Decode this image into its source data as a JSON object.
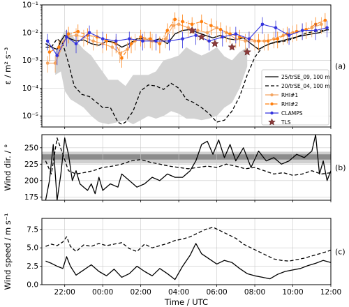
{
  "xaxis": {
    "label": "Time / UTC",
    "ticks": [
      {
        "t": 22,
        "label": "22:00"
      },
      {
        "t": 24,
        "label": "00:00"
      },
      {
        "t": 26,
        "label": "02:00"
      },
      {
        "t": 28,
        "label": "04:00"
      },
      {
        "t": 30,
        "label": "06:00"
      },
      {
        "t": 32,
        "label": "08:00"
      },
      {
        "t": 34,
        "label": "10:00"
      },
      {
        "t": 36,
        "label": "12:00"
      }
    ],
    "range": [
      20.8,
      36
    ]
  },
  "chart_data": [
    {
      "type": "line",
      "panel_label": "(a)",
      "ylabel": "ε / m² s⁻³",
      "yscale": "log",
      "ylim": [
        4e-06,
        0.1
      ],
      "yticks": [
        {
          "v": 1e-05,
          "label": "10⁻⁵"
        },
        {
          "v": 0.0001,
          "label": "10⁻⁴"
        },
        {
          "v": 0.001,
          "label": "10⁻³"
        },
        {
          "v": 0.01,
          "label": "10⁻²"
        },
        {
          "v": 0.1,
          "label": "10⁻¹"
        }
      ],
      "legend_position": "lower-right",
      "band": {
        "color": "#d3d3d3",
        "x": [
          21.5,
          21.8,
          22.0,
          22.3,
          22.6,
          23.0,
          23.4,
          23.8,
          24.3,
          24.8,
          25.2,
          25.6,
          26.0,
          26.4,
          26.8,
          27.2,
          27.6,
          28.0,
          28.4,
          28.8,
          29.2,
          29.6,
          30.0,
          30.4,
          30.8,
          31.2,
          31.6
        ],
        "upper": [
          0.002,
          0.006,
          0.012,
          0.01,
          0.005,
          0.0025,
          0.0015,
          0.0006,
          0.0002,
          0.0002,
          0.00012,
          0.0003,
          0.0003,
          0.0003,
          0.0004,
          0.001,
          0.0012,
          0.0015,
          0.003,
          0.002,
          0.0015,
          0.002,
          0.003,
          0.0014,
          0.001,
          0.002,
          0.003
        ],
        "lower": [
          0.0003,
          0.0004,
          8e-05,
          4e-05,
          3e-05,
          2e-05,
          1e-05,
          6e-06,
          5e-06,
          6e-06,
          7e-06,
          5e-06,
          7e-06,
          1e-05,
          8e-06,
          1e-05,
          1.5e-05,
          1.2e-05,
          8e-06,
          8e-06,
          7e-06,
          8e-06,
          1e-05,
          2e-05,
          3e-05,
          0.0001,
          0.0006
        ]
      },
      "series": [
        {
          "name": "25/trSE_09, 100 m",
          "color": "#000000",
          "style": "solid",
          "marker": "none",
          "x": [
            21.0,
            21.3,
            21.6,
            21.8,
            22.0,
            22.3,
            22.6,
            23.0,
            23.4,
            23.8,
            24.2,
            24.6,
            25.0,
            25.4,
            25.8,
            26.2,
            26.6,
            27.0,
            27.4,
            27.8,
            28.2,
            28.6,
            29.0,
            29.4,
            29.8,
            30.2,
            30.6,
            31.0,
            31.4,
            31.8,
            32.2,
            32.6,
            33.0,
            33.4,
            33.8,
            34.2,
            34.6,
            35.0,
            35.4,
            35.8
          ],
          "y": [
            0.004,
            0.003,
            0.0025,
            0.005,
            0.008,
            0.006,
            0.005,
            0.0055,
            0.004,
            0.0035,
            0.005,
            0.0045,
            0.003,
            0.004,
            0.006,
            0.006,
            0.005,
            0.006,
            0.004,
            0.009,
            0.012,
            0.013,
            0.01,
            0.008,
            0.0065,
            0.008,
            0.006,
            0.0055,
            0.0065,
            0.004,
            0.0025,
            0.0035,
            0.0045,
            0.005,
            0.006,
            0.007,
            0.008,
            0.009,
            0.01,
            0.013
          ]
        },
        {
          "name": "20/trSE_04, 100 m",
          "color": "#000000",
          "style": "dashed",
          "marker": "none",
          "x": [
            21.0,
            21.3,
            21.6,
            21.9,
            22.2,
            22.5,
            22.9,
            23.3,
            23.7,
            24.0,
            24.4,
            24.8,
            25.0,
            25.2,
            25.6,
            26.0,
            26.4,
            26.8,
            27.2,
            27.6,
            28.0,
            28.4,
            28.8,
            29.2,
            29.6,
            30.0,
            30.4,
            30.8,
            31.2,
            31.6,
            32.0,
            32.4,
            32.8,
            33.2,
            33.6,
            34.0,
            34.4,
            34.8,
            35.2,
            35.6,
            36.0
          ],
          "y": [
            0.003,
            0.003,
            0.006,
            0.004,
            0.0008,
            0.00012,
            6e-05,
            5e-05,
            3e-05,
            2e-05,
            2e-05,
            6e-06,
            5e-06,
            6e-06,
            1.5e-05,
            8e-05,
            0.00013,
            0.00012,
            9e-05,
            0.00015,
            0.0001,
            4e-05,
            3e-05,
            2e-05,
            1.2e-05,
            6e-06,
            7e-06,
            1.5e-05,
            5e-05,
            0.0003,
            0.0013,
            0.003,
            0.004,
            0.0045,
            0.005,
            0.006,
            0.008,
            0.01,
            0.011,
            0.012,
            0.013
          ]
        },
        {
          "name": "RHI#1",
          "color": "#f4a460",
          "style": "solid",
          "marker": "dot",
          "x": [
            21.1,
            21.5,
            22.1,
            22.6,
            23.0,
            23.5,
            24.0,
            24.5,
            24.9,
            25.3,
            25.7,
            26.2,
            26.6,
            27.0,
            27.3,
            27.7,
            28.0,
            28.5,
            29.0,
            29.5,
            30.0,
            30.5,
            31.0,
            31.5,
            32.0,
            32.5,
            33.0,
            33.5,
            34.0,
            34.5,
            35.0,
            35.5
          ],
          "y": [
            0.0008,
            0.0008,
            0.007,
            0.008,
            0.007,
            0.005,
            0.004,
            0.003,
            0.0018,
            0.0025,
            0.005,
            0.006,
            0.005,
            0.004,
            0.006,
            0.018,
            0.02,
            0.015,
            0.012,
            0.01,
            0.015,
            0.01,
            0.006,
            0.005,
            0.005,
            0.005,
            0.006,
            0.008,
            0.01,
            0.012,
            0.015,
            0.02
          ]
        },
        {
          "name": "RHI#2",
          "color": "#ff7f0e",
          "style": "dashdot",
          "marker": "dot",
          "x": [
            21.2,
            21.7,
            22.2,
            22.7,
            23.2,
            23.7,
            24.2,
            24.7,
            25.0,
            25.5,
            26.0,
            26.5,
            27.0,
            27.4,
            27.8,
            28.2,
            28.7,
            29.2,
            29.7,
            30.2,
            30.7,
            31.2,
            31.7,
            32.2,
            32.7,
            33.2,
            33.7,
            34.2,
            34.7,
            35.2,
            35.7
          ],
          "y": [
            0.002,
            0.003,
            0.009,
            0.011,
            0.008,
            0.007,
            0.005,
            0.004,
            0.0012,
            0.004,
            0.007,
            0.006,
            0.004,
            0.012,
            0.03,
            0.025,
            0.02,
            0.025,
            0.018,
            0.013,
            0.009,
            0.007,
            0.006,
            0.005,
            0.005,
            0.006,
            0.009,
            0.011,
            0.013,
            0.02,
            0.028
          ]
        },
        {
          "name": "CLAMPS",
          "color": "#3333dd",
          "style": "solid",
          "marker": "dot",
          "x": [
            21.1,
            21.6,
            22.1,
            22.6,
            23.3,
            24.0,
            24.7,
            25.4,
            26.1,
            26.8,
            27.5,
            28.2,
            28.9,
            29.6,
            30.3,
            31.0,
            31.7,
            32.4,
            33.1,
            33.8,
            34.5,
            35.2,
            35.8
          ],
          "y": [
            0.005,
            0.0015,
            0.007,
            0.004,
            0.01,
            0.006,
            0.005,
            0.006,
            0.005,
            0.005,
            0.005,
            0.006,
            0.008,
            0.005,
            0.007,
            0.009,
            0.006,
            0.02,
            0.015,
            0.008,
            0.012,
            0.012,
            0.015
          ]
        },
        {
          "name": "TLS",
          "color": "#8b3a3a",
          "style": "none",
          "marker": "star",
          "x": [
            28.7,
            29.2,
            29.9,
            30.8,
            31.6
          ],
          "y": [
            0.012,
            0.007,
            0.004,
            0.003,
            0.002
          ]
        }
      ]
    },
    {
      "type": "line",
      "panel_label": "(b)",
      "ylabel": "Wind dir. / °",
      "yscale": "linear",
      "ylim": [
        170,
        270
      ],
      "yticks": [
        {
          "v": 175,
          "label": "175"
        },
        {
          "v": 200,
          "label": "200"
        },
        {
          "v": 225,
          "label": "225"
        },
        {
          "v": 250,
          "label": "250"
        }
      ],
      "bands": [
        {
          "from": 226,
          "to": 244,
          "color": "#cfcfcf"
        },
        {
          "from": 232,
          "to": 240,
          "color": "#8c8c8c"
        }
      ],
      "series": [
        {
          "color": "#000000",
          "style": "solid",
          "x": [
            21.0,
            21.2,
            21.4,
            21.6,
            21.8,
            22.0,
            22.2,
            22.4,
            22.6,
            22.8,
            23.0,
            23.2,
            23.4,
            23.6,
            23.8,
            24.0,
            24.4,
            24.8,
            25.0,
            25.4,
            25.8,
            26.2,
            26.6,
            27.0,
            27.4,
            27.8,
            28.2,
            28.6,
            28.9,
            29.2,
            29.5,
            29.8,
            30.1,
            30.4,
            30.7,
            31.0,
            31.4,
            31.8,
            32.2,
            32.6,
            33.0,
            33.4,
            33.8,
            34.2,
            34.6,
            35.0,
            35.2,
            35.4,
            35.6,
            35.8,
            36.0
          ],
          "y": [
            170,
            200,
            255,
            170,
            210,
            265,
            240,
            200,
            215,
            195,
            190,
            185,
            195,
            180,
            205,
            185,
            195,
            190,
            210,
            200,
            190,
            195,
            205,
            200,
            210,
            205,
            205,
            215,
            230,
            255,
            260,
            240,
            262,
            235,
            255,
            230,
            250,
            220,
            245,
            230,
            235,
            225,
            230,
            240,
            235,
            245,
            270,
            210,
            230,
            200,
            215
          ]
        },
        {
          "color": "#000000",
          "style": "dashed",
          "x": [
            21.0,
            21.3,
            21.6,
            21.9,
            22.2,
            22.6,
            23.0,
            23.5,
            24.0,
            24.5,
            25.0,
            25.5,
            26.0,
            26.5,
            27.0,
            27.5,
            28.0,
            28.5,
            29.0,
            29.5,
            30.0,
            30.5,
            31.0,
            31.5,
            32.0,
            32.5,
            33.0,
            33.5,
            34.0,
            34.5,
            35.0,
            35.5,
            36.0
          ],
          "y": [
            230,
            210,
            265,
            240,
            215,
            210,
            212,
            215,
            220,
            222,
            225,
            230,
            232,
            228,
            225,
            222,
            220,
            218,
            220,
            222,
            220,
            225,
            222,
            218,
            220,
            215,
            210,
            212,
            208,
            210,
            215,
            210,
            212
          ]
        }
      ]
    },
    {
      "type": "line",
      "panel_label": "(c)",
      "ylabel": "Wind speed / m s⁻¹",
      "yscale": "linear",
      "ylim": [
        0,
        9
      ],
      "yticks": [
        {
          "v": 0,
          "label": "0.0"
        },
        {
          "v": 2.5,
          "label": "2.5"
        },
        {
          "v": 5.0,
          "label": "5.0"
        },
        {
          "v": 7.5,
          "label": "7.5"
        }
      ],
      "series": [
        {
          "color": "#000000",
          "style": "solid",
          "x": [
            21.0,
            21.3,
            21.6,
            21.9,
            22.1,
            22.3,
            22.6,
            23.0,
            23.4,
            23.8,
            24.2,
            24.6,
            25.0,
            25.4,
            25.8,
            26.2,
            26.6,
            27.0,
            27.4,
            27.8,
            28.2,
            28.6,
            28.9,
            29.2,
            29.6,
            30.0,
            30.4,
            30.8,
            31.2,
            31.6,
            32.0,
            32.4,
            32.8,
            33.2,
            33.6,
            34.0,
            34.4,
            34.8,
            35.2,
            35.6,
            36.0
          ],
          "y": [
            3.2,
            2.9,
            2.5,
            2.2,
            3.8,
            2.5,
            1.3,
            2.0,
            2.7,
            1.8,
            1.2,
            2.1,
            1.0,
            1.5,
            2.5,
            1.8,
            1.2,
            2.2,
            1.5,
            0.7,
            2.5,
            4.0,
            5.6,
            4.2,
            3.5,
            2.8,
            3.3,
            3.0,
            2.2,
            1.5,
            1.2,
            1.0,
            0.8,
            1.4,
            1.8,
            2.0,
            2.2,
            2.6,
            2.9,
            3.3,
            3.0
          ]
        },
        {
          "color": "#000000",
          "style": "dashed",
          "x": [
            21.0,
            21.3,
            21.6,
            21.9,
            22.1,
            22.3,
            22.6,
            23.0,
            23.4,
            23.8,
            24.2,
            24.6,
            25.0,
            25.4,
            25.8,
            26.2,
            26.6,
            27.0,
            27.4,
            27.8,
            28.2,
            28.6,
            29.0,
            29.4,
            29.8,
            30.2,
            30.6,
            31.0,
            31.4,
            31.8,
            32.2,
            32.6,
            33.0,
            33.4,
            33.8,
            34.2,
            34.6,
            35.0,
            35.4,
            35.8,
            36.0
          ],
          "y": [
            5.2,
            5.5,
            5.3,
            5.8,
            6.5,
            5.2,
            4.5,
            5.4,
            5.2,
            5.6,
            5.3,
            5.5,
            5.7,
            4.9,
            4.5,
            5.5,
            5.0,
            5.3,
            5.6,
            6.0,
            6.2,
            6.5,
            7.0,
            7.5,
            7.8,
            7.3,
            6.8,
            6.3,
            5.5,
            5.0,
            4.5,
            4.0,
            3.5,
            3.3,
            3.2,
            3.4,
            3.6,
            3.9,
            4.2,
            4.5,
            4.7
          ]
        }
      ]
    }
  ]
}
